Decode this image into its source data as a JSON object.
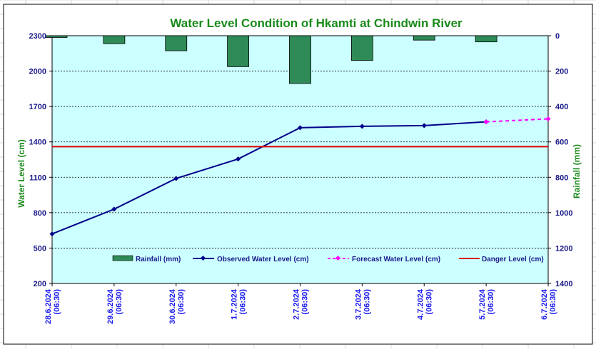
{
  "chart_data": {
    "type": "line",
    "title": "Water Level Condition of Hkamti at Chindwin River",
    "ylabel": "Water Level (cm)",
    "y2label": "Rainfall (mm)",
    "ylim": [
      200,
      2300
    ],
    "yticks": [
      200,
      500,
      800,
      1100,
      1400,
      1700,
      2000,
      2300
    ],
    "y2lim": [
      0,
      1400
    ],
    "y2ticks": [
      0,
      200,
      400,
      600,
      800,
      1000,
      1200,
      1400
    ],
    "y2_reversed": true,
    "grid": true,
    "legend_position": "bottom",
    "categories": [
      [
        "28.6.2024",
        "(06:30)"
      ],
      [
        "29.6.2024",
        "(06:30)"
      ],
      [
        "30.6.2024",
        "(06:30)"
      ],
      [
        "1.7.2024",
        "(06:30)"
      ],
      [
        "2.7.2024",
        "(06:30)"
      ],
      [
        "3.7.2024",
        "(06:30)"
      ],
      [
        "4.7.2024",
        "(06:30)"
      ],
      [
        "5.7.2024",
        "(06:30)"
      ],
      [
        "6.7.2024",
        "(06:30)"
      ]
    ],
    "series": [
      {
        "name": "Rainfall (mm)",
        "type": "bar",
        "axis": "right",
        "color": "#2e8b57",
        "values": [
          10,
          45,
          85,
          175,
          270,
          140,
          25,
          35,
          null
        ]
      },
      {
        "name": "Observed Water Level (cm)",
        "type": "line",
        "axis": "left",
        "color": "#00008b",
        "values": [
          620,
          830,
          1090,
          1255,
          1520,
          1532,
          1538,
          1570,
          null
        ]
      },
      {
        "name": "Forecast Water Level (cm)",
        "type": "line",
        "axis": "left",
        "color": "#ff00ff",
        "dashed": true,
        "values": [
          null,
          null,
          null,
          null,
          null,
          null,
          null,
          1570,
          1595
        ]
      },
      {
        "name": "Danger Level (cm)",
        "type": "hline",
        "axis": "left",
        "color": "#dd0000",
        "value": 1360
      }
    ]
  },
  "colors": {
    "plot_background": "#ccffff",
    "rainfall": "#2e8b57",
    "observed": "#00008b",
    "forecast": "#ff00ff",
    "danger": "#dd0000",
    "title": "#1a8a1a"
  }
}
